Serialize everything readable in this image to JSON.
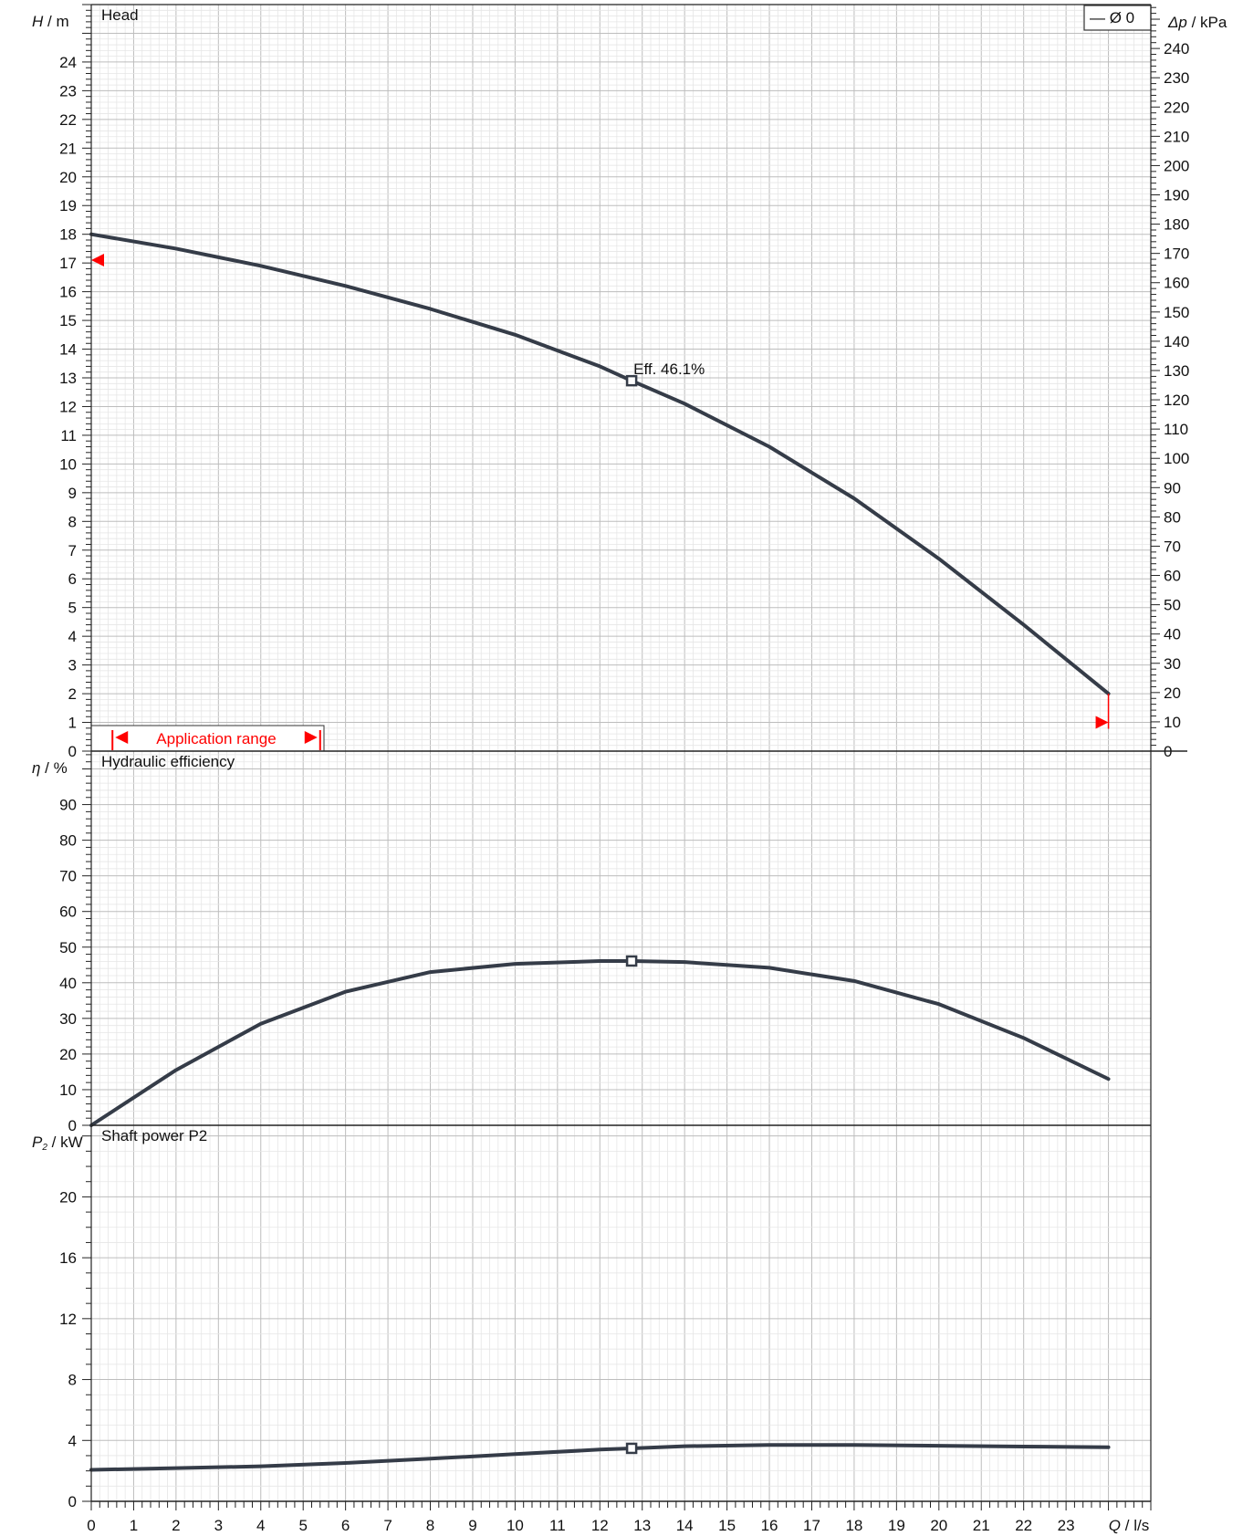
{
  "chart_data": [
    {
      "type": "line",
      "panel": "head",
      "title": "Head",
      "ylabel_left": {
        "symbol": "H",
        "unit": " / m"
      },
      "ylabel_right": {
        "symbol": "Δp",
        "unit": " / kPa"
      },
      "xlim": [
        0,
        25
      ],
      "ylim": [
        0,
        26
      ],
      "ylim_right": [
        0,
        255
      ],
      "yticks": [
        0,
        1,
        2,
        3,
        4,
        5,
        6,
        7,
        8,
        9,
        10,
        11,
        12,
        13,
        14,
        15,
        16,
        17,
        18,
        19,
        20,
        21,
        22,
        23,
        24
      ],
      "yticks_right": [
        0,
        10,
        20,
        30,
        40,
        50,
        60,
        70,
        80,
        90,
        100,
        110,
        120,
        130,
        140,
        150,
        160,
        170,
        180,
        190,
        200,
        210,
        220,
        230,
        240
      ],
      "series": [
        {
          "x": [
            0,
            2,
            4,
            6,
            8,
            10,
            12,
            12.75,
            14,
            16,
            18,
            20,
            22,
            24
          ],
          "y": [
            18.0,
            17.5,
            16.9,
            16.2,
            15.4,
            14.5,
            13.4,
            12.9,
            12.1,
            10.6,
            8.8,
            6.7,
            4.4,
            2.0
          ]
        }
      ],
      "marker": {
        "x": 12.75,
        "y": 12.9,
        "label": "Eff.  46.1%"
      },
      "legend": "— Ø 0",
      "application_range": {
        "label": "Application range",
        "from": 0.5,
        "to": 5.4
      },
      "limit_left": 17.1,
      "limit_right": 1.0
    },
    {
      "type": "line",
      "panel": "efficiency",
      "title": "Hydraulic efficiency",
      "ylabel_left": {
        "symbol": "η",
        "unit": " / %"
      },
      "xlim": [
        0,
        25
      ],
      "ylim": [
        0,
        105
      ],
      "yticks": [
        0,
        10,
        20,
        30,
        40,
        50,
        60,
        70,
        80,
        90
      ],
      "series": [
        {
          "x": [
            0,
            2,
            4,
            6,
            8,
            10,
            12,
            12.75,
            14,
            16,
            18,
            20,
            22,
            24
          ],
          "y": [
            0,
            15.5,
            28.5,
            37.5,
            43,
            45.3,
            46.1,
            46.1,
            45.8,
            44.2,
            40.5,
            34,
            24.5,
            13
          ]
        }
      ],
      "marker": {
        "x": 12.75,
        "y": 46.1
      }
    },
    {
      "type": "line",
      "panel": "power",
      "title": "Shaft power P2",
      "ylabel_left": {
        "symbol": "P",
        "sub": "2",
        "unit": " / kW"
      },
      "xlabel": {
        "symbol": "Q",
        "unit": " / l/s"
      },
      "xlim": [
        0,
        25
      ],
      "ylim": [
        0,
        24.7
      ],
      "yticks": [
        0,
        4,
        8,
        12,
        16,
        20
      ],
      "xticks": [
        0,
        1,
        2,
        3,
        4,
        5,
        6,
        7,
        8,
        9,
        10,
        11,
        12,
        13,
        14,
        15,
        16,
        17,
        18,
        19,
        20,
        21,
        22,
        23
      ],
      "series": [
        {
          "x": [
            0,
            2,
            4,
            6,
            8,
            10,
            12,
            12.75,
            14,
            16,
            18,
            20,
            22,
            24
          ],
          "y": [
            2.07,
            2.18,
            2.3,
            2.52,
            2.8,
            3.1,
            3.4,
            3.48,
            3.62,
            3.7,
            3.7,
            3.65,
            3.6,
            3.55
          ]
        }
      ],
      "marker": {
        "x": 12.75,
        "y": 3.48
      }
    }
  ]
}
